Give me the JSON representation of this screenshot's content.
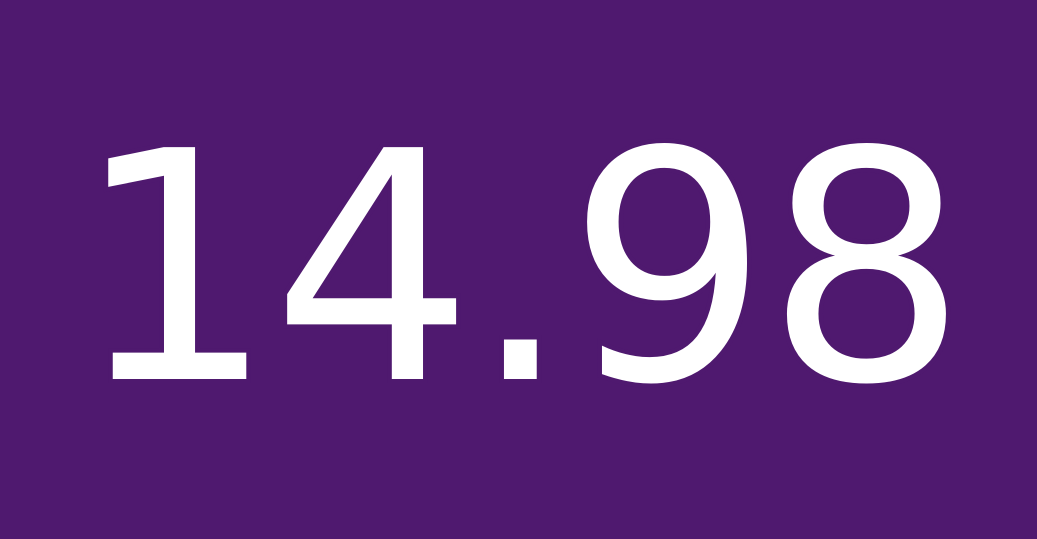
{
  "display": {
    "value": "14.98"
  },
  "colors": {
    "background": "#4f196f",
    "text": "#ffffff"
  }
}
